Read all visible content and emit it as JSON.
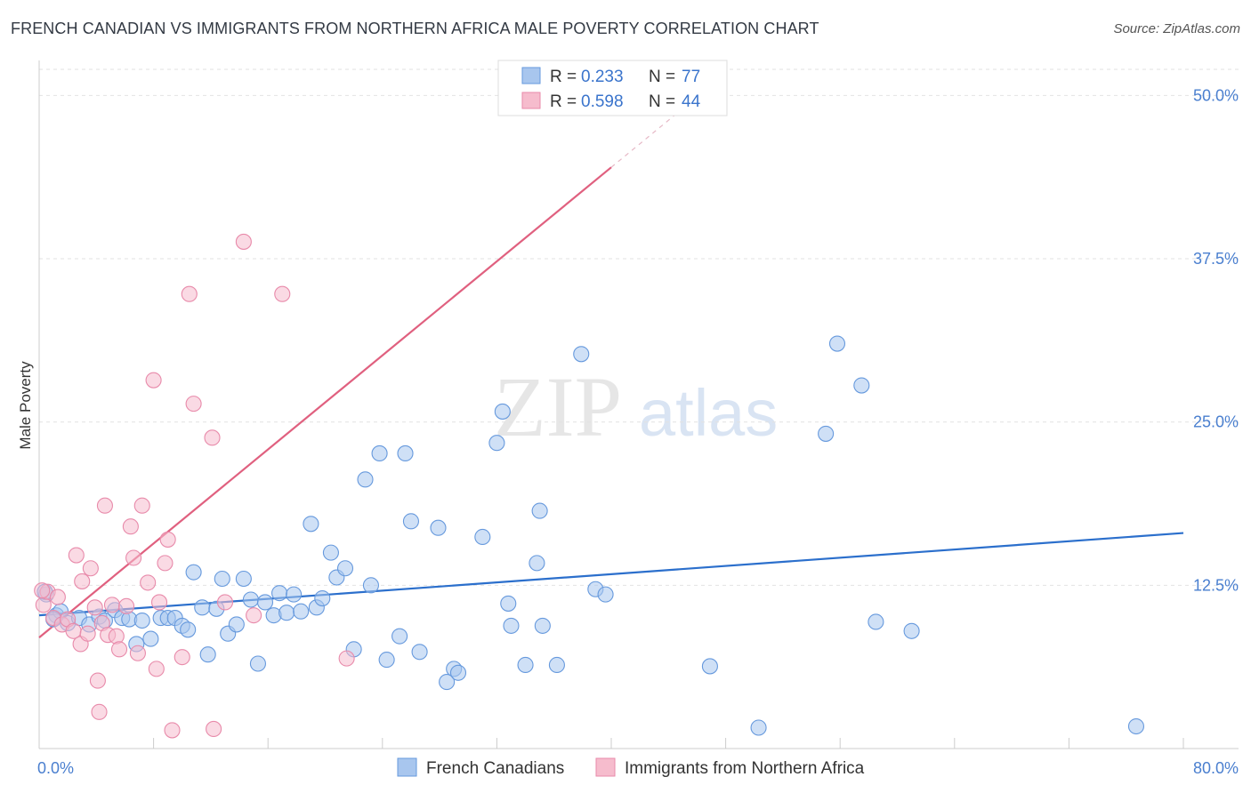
{
  "title": "FRENCH CANADIAN VS IMMIGRANTS FROM NORTHERN AFRICA MALE POVERTY CORRELATION CHART",
  "source": "Source: ZipAtlas.com",
  "watermark": {
    "zip": "ZIP",
    "atlas": "atlas"
  },
  "chart_data": {
    "type": "scatter",
    "ylabel": "Male Poverty",
    "xlim": [
      0,
      80
    ],
    "ylim": [
      0,
      52
    ],
    "x_tick_labels": [
      "0.0%",
      "80.0%"
    ],
    "y_ticks": [
      12.5,
      25.0,
      37.5,
      50.0
    ],
    "y_tick_labels": [
      "12.5%",
      "25.0%",
      "37.5%",
      "50.0%"
    ],
    "legend_top": [
      {
        "r_label": "R = ",
        "r_value": "0.233",
        "n_label": "N = ",
        "n_value": "77"
      },
      {
        "r_label": "R = ",
        "r_value": "0.598",
        "n_label": "N = ",
        "n_value": "44"
      }
    ],
    "series": [
      {
        "name": "French Canadians",
        "color": "#6699dd",
        "fill": "#a8c6ee",
        "line_color": "#2b6fcc",
        "trend": {
          "x": [
            0,
            80
          ],
          "y": [
            10.2,
            16.5
          ]
        },
        "points": [
          [
            0.5,
            11.8
          ],
          [
            1.2,
            10.2
          ],
          [
            1.5,
            10.5
          ],
          [
            2.0,
            9.6
          ],
          [
            2.8,
            10.0
          ],
          [
            3.5,
            9.5
          ],
          [
            4.2,
            10.1
          ],
          [
            4.6,
            9.8
          ],
          [
            5.3,
            10.6
          ],
          [
            5.8,
            10.0
          ],
          [
            6.3,
            9.9
          ],
          [
            6.8,
            8.0
          ],
          [
            7.2,
            9.8
          ],
          [
            7.8,
            8.4
          ],
          [
            8.5,
            10.0
          ],
          [
            9.0,
            10.0
          ],
          [
            9.5,
            10.0
          ],
          [
            10.0,
            9.4
          ],
          [
            10.4,
            9.1
          ],
          [
            10.8,
            13.5
          ],
          [
            11.4,
            10.8
          ],
          [
            11.8,
            7.2
          ],
          [
            12.4,
            10.7
          ],
          [
            12.8,
            13.0
          ],
          [
            13.2,
            8.8
          ],
          [
            13.8,
            9.5
          ],
          [
            14.3,
            13.0
          ],
          [
            14.8,
            11.4
          ],
          [
            15.3,
            6.5
          ],
          [
            15.8,
            11.2
          ],
          [
            16.4,
            10.2
          ],
          [
            16.8,
            11.9
          ],
          [
            17.3,
            10.4
          ],
          [
            17.8,
            11.8
          ],
          [
            18.3,
            10.5
          ],
          [
            19.0,
            17.2
          ],
          [
            19.4,
            10.8
          ],
          [
            19.8,
            11.5
          ],
          [
            20.4,
            15.0
          ],
          [
            20.8,
            13.1
          ],
          [
            21.4,
            13.8
          ],
          [
            22.0,
            7.6
          ],
          [
            22.8,
            20.6
          ],
          [
            23.2,
            12.5
          ],
          [
            23.8,
            22.6
          ],
          [
            24.3,
            6.8
          ],
          [
            25.2,
            8.6
          ],
          [
            25.6,
            22.6
          ],
          [
            26.0,
            17.4
          ],
          [
            26.6,
            7.4
          ],
          [
            27.9,
            16.9
          ],
          [
            28.5,
            5.1
          ],
          [
            29.0,
            6.1
          ],
          [
            29.3,
            5.8
          ],
          [
            31.0,
            16.2
          ],
          [
            32.0,
            23.4
          ],
          [
            32.4,
            25.8
          ],
          [
            32.8,
            11.1
          ],
          [
            33.0,
            9.4
          ],
          [
            34.0,
            6.4
          ],
          [
            34.8,
            14.2
          ],
          [
            35.0,
            18.2
          ],
          [
            35.2,
            9.4
          ],
          [
            36.2,
            6.4
          ],
          [
            37.9,
            30.2
          ],
          [
            38.9,
            12.2
          ],
          [
            39.6,
            11.8
          ],
          [
            46.9,
            6.3
          ],
          [
            50.3,
            1.6
          ],
          [
            55.0,
            24.1
          ],
          [
            55.8,
            31.0
          ],
          [
            57.5,
            27.8
          ],
          [
            58.5,
            9.7
          ],
          [
            61.0,
            9.0
          ],
          [
            76.7,
            1.7
          ],
          [
            0.4,
            12.0
          ],
          [
            1.0,
            9.9
          ]
        ]
      },
      {
        "name": "Immigrants from Northern Africa",
        "color": "#e88aaa",
        "fill": "#f6bccd",
        "line_color": "#e0607f",
        "trend": {
          "x": [
            0,
            40
          ],
          "y": [
            8.5,
            44.5
          ]
        },
        "trend_dash": {
          "x": [
            40,
            45
          ],
          "y": [
            44.5,
            49.0
          ]
        },
        "points": [
          [
            0.3,
            11.0
          ],
          [
            0.6,
            12.0
          ],
          [
            1.0,
            10.0
          ],
          [
            1.3,
            11.6
          ],
          [
            1.6,
            9.5
          ],
          [
            2.0,
            9.9
          ],
          [
            2.4,
            9.0
          ],
          [
            2.6,
            14.8
          ],
          [
            2.9,
            8.0
          ],
          [
            3.0,
            12.8
          ],
          [
            3.4,
            8.8
          ],
          [
            3.6,
            13.8
          ],
          [
            3.9,
            10.8
          ],
          [
            4.1,
            5.2
          ],
          [
            4.2,
            2.8
          ],
          [
            4.4,
            9.6
          ],
          [
            4.6,
            18.6
          ],
          [
            4.8,
            8.7
          ],
          [
            5.1,
            11.0
          ],
          [
            5.4,
            8.6
          ],
          [
            5.6,
            7.6
          ],
          [
            6.1,
            10.9
          ],
          [
            6.4,
            17.0
          ],
          [
            6.6,
            14.6
          ],
          [
            6.9,
            7.3
          ],
          [
            7.2,
            18.6
          ],
          [
            7.6,
            12.7
          ],
          [
            8.0,
            28.2
          ],
          [
            8.2,
            6.1
          ],
          [
            8.4,
            11.2
          ],
          [
            8.8,
            14.2
          ],
          [
            9.0,
            16.0
          ],
          [
            9.3,
            1.4
          ],
          [
            10.0,
            7.0
          ],
          [
            10.5,
            34.8
          ],
          [
            10.8,
            26.4
          ],
          [
            12.1,
            23.8
          ],
          [
            12.2,
            1.5
          ],
          [
            13.0,
            11.2
          ],
          [
            14.3,
            38.8
          ],
          [
            15.0,
            10.2
          ],
          [
            17.0,
            34.8
          ],
          [
            21.5,
            6.9
          ],
          [
            0.2,
            12.1
          ]
        ]
      }
    ]
  }
}
